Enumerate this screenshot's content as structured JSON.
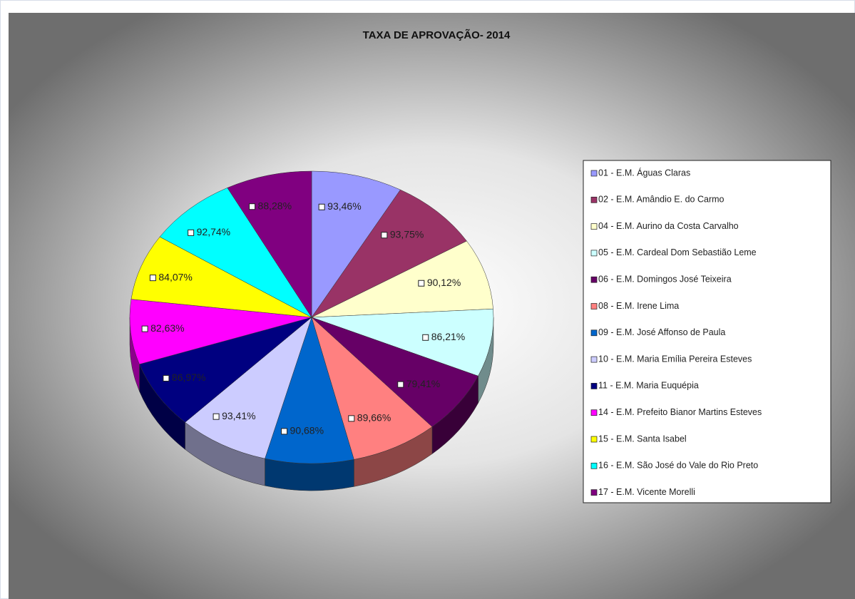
{
  "chart_data": {
    "type": "pie",
    "title": "TAXA DE APROVAÇÃO- 2014",
    "categories": [
      "01 - E.M. Águas Claras",
      "02 - E.M. Amândio E. do Carmo",
      "04 - E.M. Aurino da Costa Carvalho",
      "05 - E.M. Cardeal Dom Sebastião Leme",
      "06 - E.M. Domingos José Teixeira",
      "08 - E.M. Irene Lima",
      "09 - E.M. José Affonso de Paula",
      "10 - E.M. Maria Emília Pereira Esteves",
      "11 - E.M. Maria Euquépia",
      "14 - E.M. Prefeito Bianor Martins Esteves",
      "15 - E.M. Santa Isabel",
      "16 - E.M. São José do Vale do Rio Preto",
      "17 - E.M. Vicente Morelli"
    ],
    "values": [
      93.46,
      93.75,
      90.12,
      86.21,
      79.41,
      89.66,
      90.68,
      93.41,
      86.97,
      82.63,
      84.07,
      92.74,
      88.28
    ],
    "value_labels": [
      "93,46%",
      "93,75%",
      "90,12%",
      "86,21%",
      "79,41%",
      "89,66%",
      "90,68%",
      "93,41%",
      "86,97%",
      "82,63%",
      "84,07%",
      "92,74%",
      "88,28%"
    ],
    "colors": [
      "#9999ff",
      "#993366",
      "#ffffcc",
      "#ccffff",
      "#660066",
      "#ff8080",
      "#0066cc",
      "#ccccff",
      "#000080",
      "#ff00ff",
      "#ffff00",
      "#00ffff",
      "#800080"
    ]
  }
}
